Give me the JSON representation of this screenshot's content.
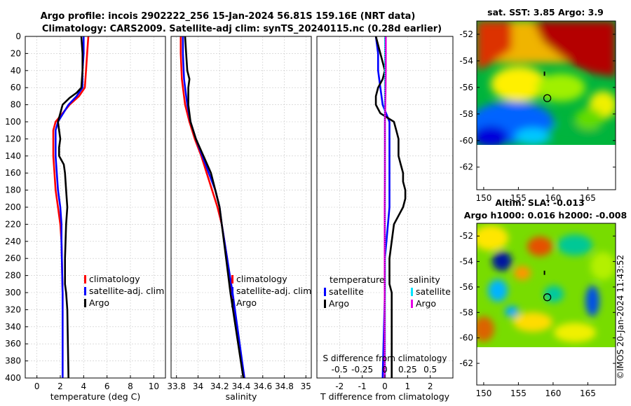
{
  "title_line1": "Argo profile: incois 2902222_256 15-Jan-2024 56.81S 159.16E (NRT data)",
  "title_line2": "Climatology: CARS2009. Satellite-adj clim: synTS_20240115.nc (0.28d earlier)",
  "watermark": "©IMOS 20-Jan-2024 11:43:52",
  "colors": {
    "climatology": "#ff0000",
    "satellite": "#0000ff",
    "argo": "#000000",
    "sat_salinity": "#00e5ff",
    "argo_salinity": "#e600e6"
  },
  "chart_data": [
    {
      "type": "line",
      "panel": "temperature",
      "xlabel": "temperature (deg C)",
      "xlim": [
        -1,
        11
      ],
      "xticks": [
        0,
        2,
        4,
        6,
        8,
        10
      ],
      "ylim": [
        0,
        400
      ],
      "yticks": [
        0,
        20,
        40,
        60,
        80,
        100,
        120,
        140,
        160,
        180,
        200,
        220,
        240,
        260,
        280,
        300,
        320,
        340,
        360,
        380,
        400
      ],
      "legend": [
        "climatology",
        "satellite-adj. clim",
        "Argo"
      ],
      "series": [
        {
          "name": "climatology",
          "color": "#ff0000",
          "depth": [
            0,
            20,
            40,
            60,
            70,
            80,
            100,
            110,
            120,
            140,
            160,
            180,
            200,
            220,
            240,
            300,
            400
          ],
          "values": [
            4.4,
            4.3,
            4.2,
            4.1,
            3.6,
            2.8,
            1.6,
            1.4,
            1.4,
            1.4,
            1.5,
            1.6,
            1.8,
            2.0,
            2.1,
            2.2,
            2.2
          ]
        },
        {
          "name": "satellite-adj. clim",
          "color": "#0000ff",
          "depth": [
            0,
            20,
            40,
            60,
            70,
            80,
            100,
            110,
            120,
            140,
            160,
            180,
            200,
            220,
            240,
            300,
            400
          ],
          "values": [
            4.0,
            4.0,
            3.9,
            3.9,
            3.4,
            2.7,
            1.8,
            1.6,
            1.6,
            1.6,
            1.7,
            1.8,
            2.0,
            2.1,
            2.1,
            2.2,
            2.2
          ]
        },
        {
          "name": "Argo",
          "color": "#000000",
          "depth": [
            0,
            20,
            40,
            60,
            66,
            72,
            80,
            90,
            100,
            110,
            120,
            130,
            140,
            150,
            160,
            180,
            200,
            220,
            260,
            290,
            300,
            320,
            400
          ],
          "values": [
            3.8,
            3.9,
            3.9,
            3.8,
            3.4,
            2.8,
            2.2,
            2.0,
            1.8,
            1.9,
            2.0,
            1.9,
            1.9,
            2.3,
            2.4,
            2.5,
            2.6,
            2.5,
            2.4,
            2.4,
            2.5,
            2.6,
            2.7
          ]
        }
      ]
    },
    {
      "type": "line",
      "panel": "salinity",
      "xlabel": "salinity",
      "xlim": [
        33.75,
        35.05
      ],
      "xticks": [
        33.8,
        34,
        34.2,
        34.4,
        34.6,
        34.8,
        35
      ],
      "xticklabels": [
        "33.8",
        "34",
        "34.2",
        "34.4",
        "34.6",
        "34.8",
        "35"
      ],
      "ylim": [
        0,
        400
      ],
      "legend": [
        "climatology",
        "satellite-adj. clim",
        "Argo"
      ],
      "series": [
        {
          "name": "climatology",
          "color": "#ff0000",
          "depth": [
            0,
            20,
            50,
            80,
            100,
            120,
            140,
            160,
            180,
            200,
            220,
            260,
            300,
            400
          ],
          "values": [
            33.84,
            33.84,
            33.85,
            33.88,
            33.92,
            33.97,
            34.03,
            34.08,
            34.13,
            34.18,
            34.22,
            34.27,
            34.31,
            34.43
          ]
        },
        {
          "name": "satellite-adj. clim",
          "color": "#0000ff",
          "depth": [
            0,
            20,
            50,
            80,
            100,
            120,
            140,
            160,
            180,
            200,
            220,
            260,
            300,
            400
          ],
          "values": [
            33.86,
            33.86,
            33.87,
            33.9,
            33.93,
            33.98,
            34.04,
            34.1,
            34.16,
            34.2,
            34.22,
            34.27,
            34.32,
            34.43
          ]
        },
        {
          "name": "Argo",
          "color": "#000000",
          "depth": [
            0,
            20,
            40,
            50,
            60,
            80,
            100,
            120,
            140,
            160,
            180,
            200,
            220,
            260,
            300,
            400
          ],
          "values": [
            33.88,
            33.89,
            33.9,
            33.92,
            33.91,
            33.91,
            33.93,
            33.98,
            34.05,
            34.12,
            34.16,
            34.2,
            34.22,
            34.26,
            34.3,
            34.42
          ]
        }
      ]
    },
    {
      "type": "line",
      "panel": "difference",
      "xlabel": "T difference from climatology",
      "top_axis_label": "S difference from climatology",
      "xlim": [
        -3,
        3
      ],
      "xticks": [
        -2,
        -1,
        0,
        1,
        2
      ],
      "xticklabels": [
        "-2",
        "-1",
        "0",
        "1",
        "2"
      ],
      "top_axis_xlim": [
        -0.75,
        0.75
      ],
      "top_axis_ticks": [
        -0.5,
        -0.25,
        0,
        0.25,
        0.5
      ],
      "top_axis_ticklabels": [
        "-0.5",
        "-0.25",
        "0",
        "0.25",
        "0.5"
      ],
      "ylim": [
        0,
        400
      ],
      "legend_temperature_title": "temperature",
      "legend_salinity_title": "salinity",
      "legend_temperature": [
        "satellite",
        "Argo"
      ],
      "legend_salinity": [
        "satellite",
        "Argo"
      ],
      "series": [
        {
          "name": "T satellite",
          "color": "#0000ff",
          "depth": [
            0,
            20,
            40,
            60,
            80,
            100,
            140,
            200,
            260,
            300,
            400
          ],
          "values": [
            -0.4,
            -0.3,
            -0.3,
            -0.2,
            -0.1,
            0.2,
            0.2,
            0.2,
            0.0,
            0.0,
            -0.1
          ]
        },
        {
          "name": "T Argo",
          "color": "#000000",
          "depth": [
            0,
            20,
            40,
            50,
            60,
            70,
            80,
            90,
            100,
            110,
            120,
            130,
            140,
            150,
            160,
            170,
            180,
            190,
            200,
            210,
            220,
            240,
            260,
            280,
            290,
            300,
            320,
            400
          ],
          "values": [
            -0.4,
            -0.2,
            0.0,
            -0.1,
            -0.3,
            -0.4,
            -0.4,
            -0.2,
            0.4,
            0.5,
            0.6,
            0.6,
            0.6,
            0.7,
            0.8,
            0.8,
            0.9,
            0.9,
            0.8,
            0.6,
            0.4,
            0.3,
            0.2,
            0.2,
            0.2,
            0.3,
            0.3,
            0.3
          ]
        },
        {
          "name": "S satellite",
          "color": "#00e5ff",
          "depth": [
            0,
            40,
            80,
            120,
            160,
            200,
            240,
            300,
            400
          ],
          "values": [
            0.01,
            0.01,
            0.0,
            0.0,
            0.0,
            0.0,
            0.0,
            0.0,
            0.0
          ]
        },
        {
          "name": "S Argo",
          "color": "#e600e6",
          "depth": [
            0,
            20,
            40,
            60,
            80,
            100,
            120,
            140,
            160,
            200,
            220,
            260,
            300,
            340,
            400
          ],
          "values": [
            0.04,
            0.04,
            0.04,
            0.03,
            0.02,
            0.0,
            0.0,
            0.0,
            0.0,
            -0.01,
            -0.01,
            -0.01,
            -0.01,
            -0.01,
            -0.01
          ]
        }
      ]
    },
    {
      "type": "heatmap",
      "panel": "sst-map",
      "title": "sat. SST: 3.85 Argo: 3.9",
      "xlim": [
        149,
        169
      ],
      "ylim": [
        -63.7,
        -51
      ],
      "xticks": [
        150,
        155,
        160,
        165
      ],
      "yticks": [
        -52,
        -54,
        -56,
        -58,
        -60,
        -62
      ],
      "argo_position": [
        159.16,
        -56.81
      ]
    },
    {
      "type": "heatmap",
      "panel": "sla-map",
      "title_line1": "Altim. SLA: -0.013",
      "title_line2": "Argo h1000: 0.016 h2000: -0.008",
      "xlim": [
        149,
        169
      ],
      "ylim": [
        -63.7,
        -51
      ],
      "xticks": [
        150,
        155,
        160,
        165
      ],
      "yticks": [
        -52,
        -54,
        -56,
        -58,
        -60,
        -62
      ],
      "argo_position": [
        159.16,
        -56.81
      ]
    }
  ]
}
